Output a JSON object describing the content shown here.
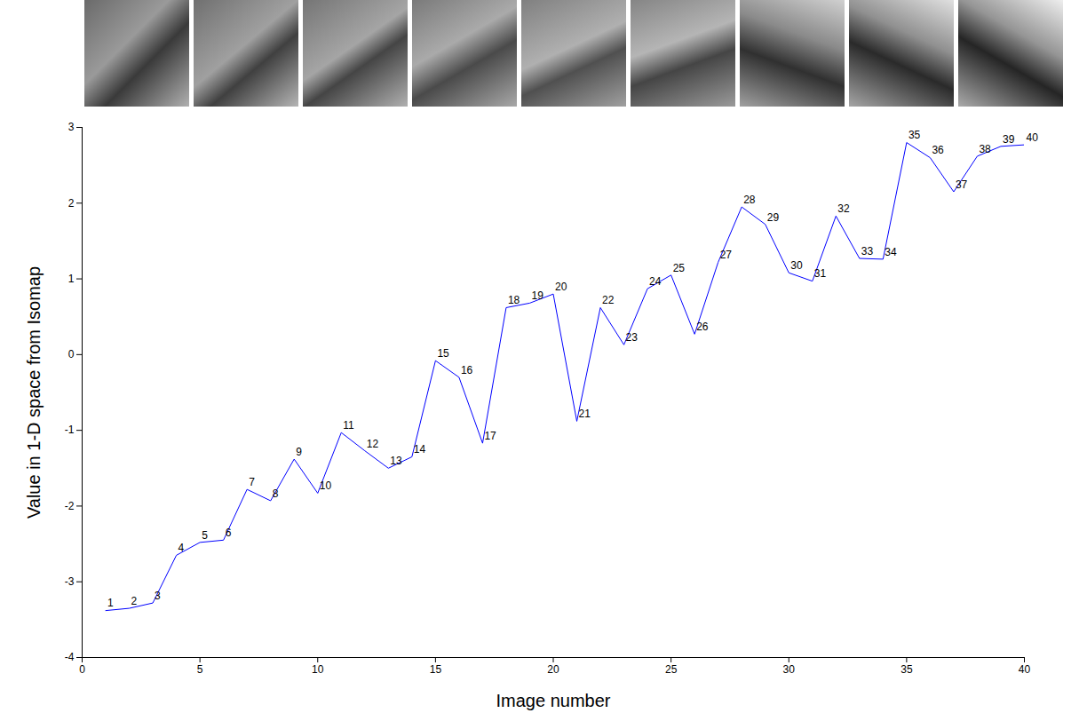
{
  "chart_data": {
    "type": "line",
    "x_label": "Image number",
    "y_label": "Value in 1-D space from Isomap",
    "x": [
      1,
      2,
      3,
      4,
      5,
      6,
      7,
      8,
      9,
      10,
      11,
      12,
      13,
      14,
      15,
      16,
      17,
      18,
      19,
      20,
      21,
      22,
      23,
      24,
      25,
      26,
      27,
      28,
      29,
      30,
      31,
      32,
      33,
      34,
      35,
      36,
      37,
      38,
      39,
      40
    ],
    "values": [
      -3.38,
      -3.35,
      -3.28,
      -2.65,
      -2.48,
      -2.45,
      -1.78,
      -1.93,
      -1.38,
      -1.83,
      -1.03,
      -1.27,
      -1.5,
      -1.35,
      -0.08,
      -0.3,
      -1.17,
      0.62,
      0.68,
      0.8,
      -0.88,
      0.62,
      0.13,
      0.87,
      1.05,
      0.27,
      1.22,
      1.95,
      1.72,
      1.08,
      0.97,
      1.83,
      1.27,
      1.26,
      2.8,
      2.6,
      2.15,
      2.62,
      2.75,
      2.77
    ],
    "point_labels": [
      "1",
      "2",
      "3",
      "4",
      "5",
      "6",
      "7",
      "8",
      "9",
      "10",
      "11",
      "12",
      "13",
      "14",
      "15",
      "16",
      "17",
      "18",
      "19",
      "20",
      "21",
      "22",
      "23",
      "24",
      "25",
      "26",
      "27",
      "28",
      "29",
      "30",
      "31",
      "32",
      "33",
      "34",
      "35",
      "36",
      "37",
      "38",
      "39",
      "40"
    ],
    "color": "#0000ff",
    "xlim": [
      0,
      40
    ],
    "xticks": [
      0,
      5,
      10,
      15,
      20,
      25,
      30,
      35,
      40
    ],
    "ylim": [
      -4,
      3
    ],
    "yticks": [
      -4,
      -3,
      -2,
      -1,
      0,
      1,
      2,
      3
    ],
    "grid": false
  }
}
